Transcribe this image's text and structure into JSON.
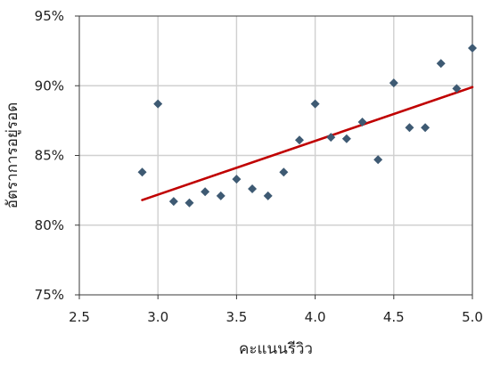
{
  "chart_data": {
    "type": "scatter",
    "title": "",
    "xlabel": "คะแนนรีวิว",
    "ylabel": "อัตราการอยู่รอด",
    "xlim": [
      2.5,
      5.0
    ],
    "ylim": [
      75,
      95
    ],
    "x_ticks": [
      2.5,
      3.0,
      3.5,
      4.0,
      4.5,
      5.0
    ],
    "y_ticks": [
      75,
      80,
      85,
      90,
      95
    ],
    "x_tick_labels": [
      "2.5",
      "3.0",
      "3.5",
      "4.0",
      "4.5",
      "5.0"
    ],
    "y_tick_labels": [
      "75%",
      "80%",
      "85%",
      "90%",
      "95%"
    ],
    "grid": true,
    "series": [
      {
        "kind": "scatter",
        "marker": "diamond",
        "color": "#3e5a73",
        "points": [
          {
            "x": 2.9,
            "y": 83.8
          },
          {
            "x": 3.0,
            "y": 88.7
          },
          {
            "x": 3.1,
            "y": 81.7
          },
          {
            "x": 3.2,
            "y": 81.6
          },
          {
            "x": 3.3,
            "y": 82.4
          },
          {
            "x": 3.4,
            "y": 82.1
          },
          {
            "x": 3.5,
            "y": 83.3
          },
          {
            "x": 3.6,
            "y": 82.6
          },
          {
            "x": 3.7,
            "y": 82.1
          },
          {
            "x": 3.8,
            "y": 83.8
          },
          {
            "x": 3.9,
            "y": 86.1
          },
          {
            "x": 4.0,
            "y": 88.7
          },
          {
            "x": 4.1,
            "y": 86.3
          },
          {
            "x": 4.2,
            "y": 86.2
          },
          {
            "x": 4.3,
            "y": 87.4
          },
          {
            "x": 4.4,
            "y": 84.7
          },
          {
            "x": 4.5,
            "y": 90.2
          },
          {
            "x": 4.6,
            "y": 87.0
          },
          {
            "x": 4.7,
            "y": 87.0
          },
          {
            "x": 4.8,
            "y": 91.6
          },
          {
            "x": 4.9,
            "y": 89.8
          },
          {
            "x": 5.0,
            "y": 92.7
          }
        ]
      },
      {
        "kind": "line",
        "color": "#c00000",
        "points": [
          {
            "x": 2.9,
            "y": 81.8
          },
          {
            "x": 5.0,
            "y": 89.9
          }
        ]
      }
    ]
  }
}
